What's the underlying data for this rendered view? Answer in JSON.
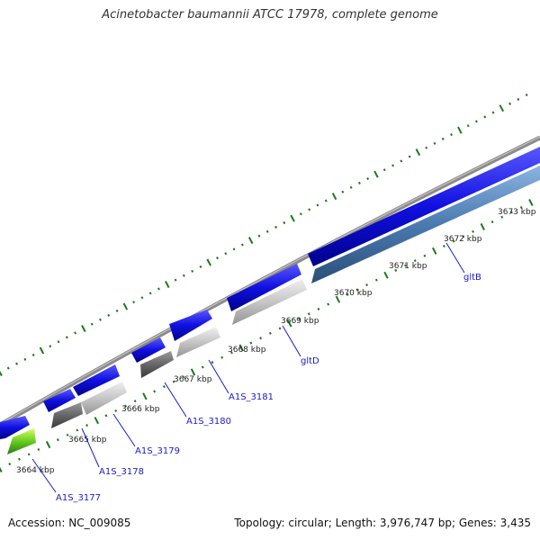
{
  "title": "Acinetobacter baumannii ATCC 17978, complete genome",
  "footer": {
    "accession": "Accession: NC_009085",
    "summary": "Topology: circular; Length: 3,976,747 bp; Genes: 3,435"
  },
  "colors": {
    "forward_cds": "#1010e0",
    "gray_dark": "#6a6a6a",
    "gray_light": "#c8c8c8",
    "steel_blue": "#4a7ab0",
    "green": "#66cc22",
    "tick_green": "#1a7a1a",
    "backbone": "#8a8a8a",
    "gene_label": "#1a1acc"
  },
  "ticks": [
    "3664 kbp",
    "3665 kbp",
    "3666 kbp",
    "3667 kbp",
    "3668 kbp",
    "3669 kbp",
    "3670 kbp",
    "3671 kbp",
    "3672 kbp",
    "3673 kbp"
  ],
  "genes": [
    "A1S_3177",
    "A1S_3178",
    "A1S_3179",
    "A1S_3180",
    "A1S_3181",
    "gltD",
    "gltB"
  ]
}
